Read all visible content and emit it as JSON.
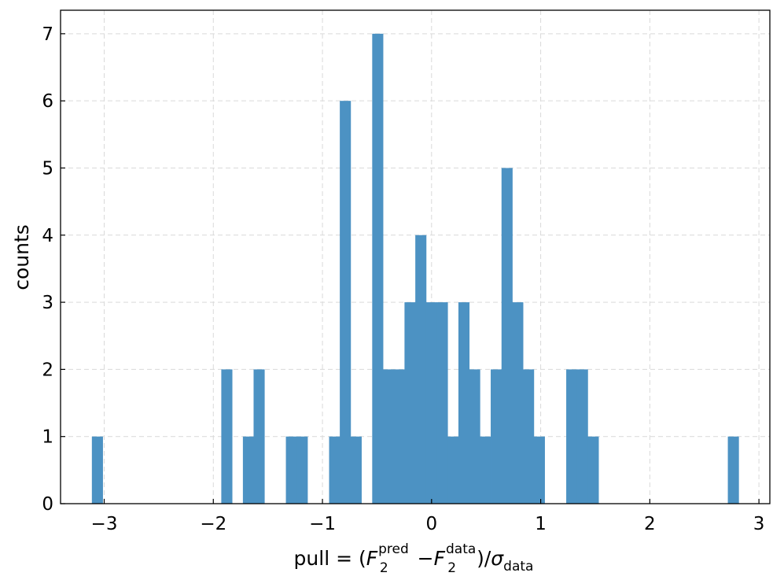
{
  "chart_data": {
    "type": "bar",
    "xlabel": {
      "prefix": "pull = (",
      "f": "F",
      "sub": "2",
      "sup_pred": "pred",
      "minus": "−",
      "sup_data": "data",
      "close": ")/",
      "sigma": "σ",
      "sigma_sub": "data"
    },
    "ylabel": "counts",
    "xlim": [
      -3.4,
      3.1
    ],
    "ylim": [
      0,
      7.35
    ],
    "grid": true,
    "bar_color": "#4c92c3",
    "bin_width": 0.0988,
    "x_ticks": [
      {
        "value": -3,
        "label": "−3"
      },
      {
        "value": -2,
        "label": "−2"
      },
      {
        "value": -1,
        "label": "−1"
      },
      {
        "value": 0,
        "label": "0"
      },
      {
        "value": 1,
        "label": "1"
      },
      {
        "value": 2,
        "label": "2"
      },
      {
        "value": 3,
        "label": "3"
      }
    ],
    "y_ticks": [
      {
        "value": 0,
        "label": "0"
      },
      {
        "value": 1,
        "label": "1"
      },
      {
        "value": 2,
        "label": "2"
      },
      {
        "value": 3,
        "label": "3"
      },
      {
        "value": 4,
        "label": "4"
      },
      {
        "value": 5,
        "label": "5"
      },
      {
        "value": 6,
        "label": "6"
      },
      {
        "value": 7,
        "label": "7"
      }
    ],
    "bins": [
      {
        "x": -3.113,
        "count": 1
      },
      {
        "x": -1.927,
        "count": 2
      },
      {
        "x": -1.729,
        "count": 1
      },
      {
        "x": -1.631,
        "count": 2
      },
      {
        "x": -1.335,
        "count": 1
      },
      {
        "x": -1.236,
        "count": 1
      },
      {
        "x": -0.939,
        "count": 1
      },
      {
        "x": -0.841,
        "count": 6
      },
      {
        "x": -0.742,
        "count": 1
      },
      {
        "x": -0.544,
        "count": 7
      },
      {
        "x": -0.446,
        "count": 2
      },
      {
        "x": -0.347,
        "count": 2
      },
      {
        "x": -0.248,
        "count": 3
      },
      {
        "x": -0.149,
        "count": 4
      },
      {
        "x": -0.051,
        "count": 3
      },
      {
        "x": 0.048,
        "count": 3
      },
      {
        "x": 0.147,
        "count": 1
      },
      {
        "x": 0.246,
        "count": 3
      },
      {
        "x": 0.344,
        "count": 2
      },
      {
        "x": 0.443,
        "count": 1
      },
      {
        "x": 0.542,
        "count": 2
      },
      {
        "x": 0.641,
        "count": 5
      },
      {
        "x": 0.739,
        "count": 3
      },
      {
        "x": 0.838,
        "count": 2
      },
      {
        "x": 0.937,
        "count": 1
      },
      {
        "x": 1.234,
        "count": 2
      },
      {
        "x": 1.332,
        "count": 2
      },
      {
        "x": 1.431,
        "count": 1
      },
      {
        "x": 2.715,
        "count": 1
      }
    ]
  }
}
